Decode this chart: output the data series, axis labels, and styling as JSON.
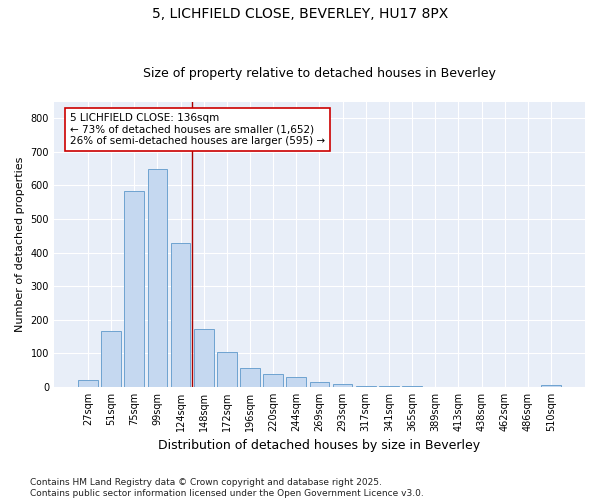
{
  "title1": "5, LICHFIELD CLOSE, BEVERLEY, HU17 8PX",
  "title2": "Size of property relative to detached houses in Beverley",
  "xlabel": "Distribution of detached houses by size in Beverley",
  "ylabel": "Number of detached properties",
  "categories": [
    "27sqm",
    "51sqm",
    "75sqm",
    "99sqm",
    "124sqm",
    "148sqm",
    "172sqm",
    "196sqm",
    "220sqm",
    "244sqm",
    "269sqm",
    "293sqm",
    "317sqm",
    "341sqm",
    "365sqm",
    "389sqm",
    "413sqm",
    "438sqm",
    "462sqm",
    "486sqm",
    "510sqm"
  ],
  "values": [
    20,
    168,
    582,
    648,
    430,
    172,
    104,
    55,
    38,
    30,
    14,
    9,
    2,
    2,
    2,
    0,
    0,
    0,
    0,
    0,
    5
  ],
  "bar_color": "#c5d8f0",
  "bar_edge_color": "#6ea3d0",
  "vline_color": "#aa0000",
  "vline_x": 4.5,
  "annotation_line1": "5 LICHFIELD CLOSE: 136sqm",
  "annotation_line2": "← 73% of detached houses are smaller (1,652)",
  "annotation_line3": "26% of semi-detached houses are larger (595) →",
  "annotation_box_facecolor": "#ffffff",
  "annotation_box_edgecolor": "#cc0000",
  "ylim": [
    0,
    850
  ],
  "yticks": [
    0,
    100,
    200,
    300,
    400,
    500,
    600,
    700,
    800
  ],
  "bg_color": "#ffffff",
  "plot_bg_color": "#e8eef8",
  "grid_color": "#ffffff",
  "footer": "Contains HM Land Registry data © Crown copyright and database right 2025.\nContains public sector information licensed under the Open Government Licence v3.0.",
  "title1_fontsize": 10,
  "title2_fontsize": 9,
  "xlabel_fontsize": 9,
  "ylabel_fontsize": 8,
  "tick_fontsize": 7,
  "annot_fontsize": 7.5,
  "footer_fontsize": 6.5
}
